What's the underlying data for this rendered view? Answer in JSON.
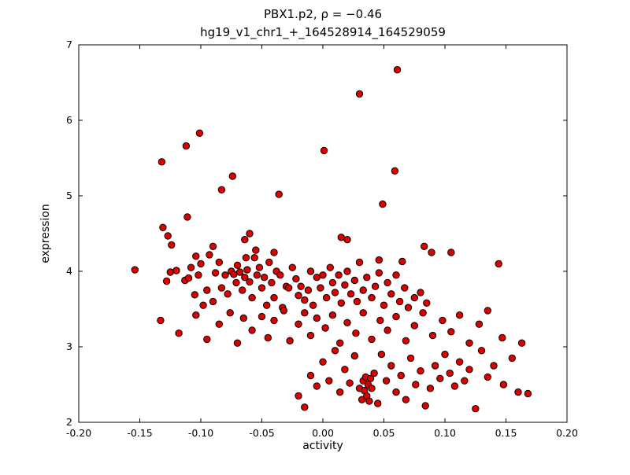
{
  "chart_data": {
    "type": "scatter",
    "title": "PBX1.p2, ρ = −0.46",
    "subtitle": "hg19_v1_chr1_+_164528914_164529059",
    "xlabel": "activity",
    "ylabel": "expression",
    "correlation": -0.46,
    "xlim": [
      -0.2,
      0.2
    ],
    "ylim": [
      2,
      7
    ],
    "grid": false,
    "legend": "none",
    "xticks": {
      "values": [
        -0.2,
        -0.15,
        -0.1,
        -0.05,
        0.0,
        0.05,
        0.1,
        0.15,
        0.2
      ],
      "labels": [
        "-0.20",
        "-0.15",
        "-0.10",
        "-0.05",
        "0.00",
        "0.05",
        "0.10",
        "0.15",
        "0.20"
      ]
    },
    "yticks": {
      "values": [
        2,
        3,
        4,
        5,
        6,
        7
      ],
      "labels": [
        "2",
        "3",
        "4",
        "5",
        "6",
        "7"
      ]
    },
    "marker": {
      "color": "#dd0000",
      "edge_color": "#000000",
      "radius": 4.2,
      "edge_width": 1
    },
    "points": [
      [
        0.061,
        6.67
      ],
      [
        0.03,
        6.35
      ],
      [
        -0.101,
        5.83
      ],
      [
        -0.112,
        5.66
      ],
      [
        0.001,
        5.6
      ],
      [
        -0.132,
        5.45
      ],
      [
        0.059,
        5.33
      ],
      [
        -0.074,
        5.26
      ],
      [
        -0.083,
        5.08
      ],
      [
        -0.036,
        5.02
      ],
      [
        0.049,
        4.89
      ],
      [
        -0.111,
        4.72
      ],
      [
        -0.131,
        4.58
      ],
      [
        -0.127,
        4.47
      ],
      [
        -0.06,
        4.5
      ],
      [
        -0.064,
        4.42
      ],
      [
        0.015,
        4.45
      ],
      [
        0.083,
        4.33
      ],
      [
        0.089,
        4.25
      ],
      [
        0.105,
        4.25
      ],
      [
        -0.154,
        4.02
      ],
      [
        0.144,
        4.1
      ],
      [
        -0.124,
        4.35
      ],
      [
        -0.09,
        4.33
      ],
      [
        -0.055,
        4.28
      ],
      [
        -0.04,
        4.25
      ],
      [
        -0.104,
        4.2
      ],
      [
        -0.063,
        4.18
      ],
      [
        0.02,
        4.42
      ],
      [
        0.046,
        4.15
      ],
      [
        0.065,
        4.13
      ],
      [
        -0.128,
        3.87
      ],
      [
        -0.125,
        3.99
      ],
      [
        -0.12,
        4.01
      ],
      [
        -0.113,
        3.88
      ],
      [
        -0.11,
        3.91
      ],
      [
        -0.108,
        4.05
      ],
      [
        -0.105,
        3.69
      ],
      [
        -0.102,
        3.95
      ],
      [
        -0.1,
        4.1
      ],
      [
        -0.098,
        3.55
      ],
      [
        -0.095,
        3.75
      ],
      [
        -0.093,
        4.22
      ],
      [
        -0.09,
        3.6
      ],
      [
        -0.088,
        3.98
      ],
      [
        -0.085,
        4.12
      ],
      [
        -0.083,
        3.78
      ],
      [
        -0.08,
        3.95
      ],
      [
        -0.078,
        3.7
      ],
      [
        -0.075,
        4.0
      ],
      [
        -0.073,
        3.96
      ],
      [
        -0.071,
        3.85
      ],
      [
        -0.07,
        4.08
      ],
      [
        -0.068,
        3.99
      ],
      [
        -0.066,
        3.75
      ],
      [
        -0.064,
        3.92
      ],
      [
        -0.062,
        4.02
      ],
      [
        -0.06,
        3.86
      ],
      [
        -0.058,
        3.65
      ],
      [
        -0.056,
        4.18
      ],
      [
        -0.054,
        3.95
      ],
      [
        -0.052,
        4.05
      ],
      [
        -0.05,
        3.78
      ],
      [
        -0.048,
        3.92
      ],
      [
        -0.046,
        3.55
      ],
      [
        -0.044,
        4.12
      ],
      [
        -0.042,
        3.85
      ],
      [
        -0.04,
        3.65
      ],
      [
        -0.038,
        4.0
      ],
      [
        -0.035,
        3.95
      ],
      [
        -0.033,
        3.52
      ],
      [
        -0.03,
        3.8
      ],
      [
        -0.028,
        3.78
      ],
      [
        -0.025,
        4.05
      ],
      [
        -0.022,
        3.9
      ],
      [
        -0.02,
        3.68
      ],
      [
        -0.018,
        3.8
      ],
      [
        -0.015,
        3.62
      ],
      [
        -0.012,
        3.75
      ],
      [
        -0.01,
        4.0
      ],
      [
        -0.008,
        3.55
      ],
      [
        -0.005,
        3.92
      ],
      [
        -0.002,
        3.78
      ],
      [
        0.0,
        3.95
      ],
      [
        0.003,
        3.65
      ],
      [
        0.006,
        4.05
      ],
      [
        0.008,
        3.85
      ],
      [
        0.01,
        3.72
      ],
      [
        0.013,
        3.95
      ],
      [
        0.015,
        3.58
      ],
      [
        0.018,
        3.82
      ],
      [
        0.02,
        4.0
      ],
      [
        0.023,
        3.7
      ],
      [
        0.026,
        3.88
      ],
      [
        0.028,
        3.6
      ],
      [
        0.03,
        4.12
      ],
      [
        0.033,
        3.75
      ],
      [
        0.036,
        3.92
      ],
      [
        0.04,
        3.65
      ],
      [
        0.043,
        3.8
      ],
      [
        0.046,
        3.98
      ],
      [
        0.05,
        3.55
      ],
      [
        0.053,
        3.85
      ],
      [
        0.056,
        3.7
      ],
      [
        0.06,
        3.95
      ],
      [
        0.063,
        3.6
      ],
      [
        0.067,
        3.78
      ],
      [
        0.07,
        3.52
      ],
      [
        0.075,
        3.65
      ],
      [
        0.08,
        3.72
      ],
      [
        0.085,
        3.58
      ],
      [
        -0.133,
        3.35
      ],
      [
        -0.118,
        3.18
      ],
      [
        -0.104,
        3.42
      ],
      [
        -0.095,
        3.1
      ],
      [
        -0.085,
        3.3
      ],
      [
        -0.076,
        3.45
      ],
      [
        -0.07,
        3.05
      ],
      [
        -0.065,
        3.38
      ],
      [
        -0.058,
        3.22
      ],
      [
        -0.05,
        3.4
      ],
      [
        -0.045,
        3.12
      ],
      [
        -0.04,
        3.35
      ],
      [
        -0.032,
        3.48
      ],
      [
        -0.027,
        3.08
      ],
      [
        -0.02,
        3.3
      ],
      [
        -0.015,
        3.45
      ],
      [
        -0.01,
        3.15
      ],
      [
        -0.005,
        3.38
      ],
      [
        0.002,
        3.25
      ],
      [
        0.008,
        3.42
      ],
      [
        0.014,
        3.05
      ],
      [
        0.02,
        3.32
      ],
      [
        0.027,
        3.18
      ],
      [
        0.033,
        3.45
      ],
      [
        0.04,
        3.1
      ],
      [
        0.047,
        3.35
      ],
      [
        0.053,
        3.22
      ],
      [
        0.06,
        3.4
      ],
      [
        0.068,
        3.08
      ],
      [
        0.075,
        3.28
      ],
      [
        0.082,
        3.45
      ],
      [
        0.09,
        3.15
      ],
      [
        0.098,
        3.35
      ],
      [
        0.105,
        3.2
      ],
      [
        0.112,
        3.42
      ],
      [
        0.12,
        3.05
      ],
      [
        0.128,
        3.3
      ],
      [
        0.135,
        3.48
      ],
      [
        0.147,
        3.12
      ],
      [
        0.163,
        3.05
      ],
      [
        -0.02,
        2.35
      ],
      [
        -0.015,
        2.2
      ],
      [
        -0.01,
        2.62
      ],
      [
        -0.005,
        2.48
      ],
      [
        0.0,
        2.8
      ],
      [
        0.005,
        2.55
      ],
      [
        0.01,
        2.95
      ],
      [
        0.014,
        2.4
      ],
      [
        0.018,
        2.7
      ],
      [
        0.022,
        2.52
      ],
      [
        0.026,
        2.88
      ],
      [
        0.03,
        2.45
      ],
      [
        0.032,
        2.3
      ],
      [
        0.033,
        2.55
      ],
      [
        0.034,
        2.42
      ],
      [
        0.035,
        2.6
      ],
      [
        0.036,
        2.35
      ],
      [
        0.037,
        2.5
      ],
      [
        0.038,
        2.28
      ],
      [
        0.039,
        2.58
      ],
      [
        0.04,
        2.45
      ],
      [
        0.042,
        2.65
      ],
      [
        0.045,
        2.25
      ],
      [
        0.048,
        2.9
      ],
      [
        0.052,
        2.55
      ],
      [
        0.056,
        2.75
      ],
      [
        0.06,
        2.4
      ],
      [
        0.064,
        2.62
      ],
      [
        0.068,
        2.3
      ],
      [
        0.072,
        2.85
      ],
      [
        0.076,
        2.5
      ],
      [
        0.08,
        2.68
      ],
      [
        0.084,
        2.22
      ],
      [
        0.088,
        2.45
      ],
      [
        0.092,
        2.75
      ],
      [
        0.096,
        2.58
      ],
      [
        0.1,
        2.9
      ],
      [
        0.104,
        2.65
      ],
      [
        0.108,
        2.48
      ],
      [
        0.112,
        2.8
      ],
      [
        0.116,
        2.55
      ],
      [
        0.12,
        2.7
      ],
      [
        0.125,
        2.18
      ],
      [
        0.13,
        2.95
      ],
      [
        0.135,
        2.6
      ],
      [
        0.14,
        2.75
      ],
      [
        0.148,
        2.5
      ],
      [
        0.155,
        2.85
      ],
      [
        0.16,
        2.4
      ],
      [
        0.168,
        2.38
      ]
    ]
  }
}
